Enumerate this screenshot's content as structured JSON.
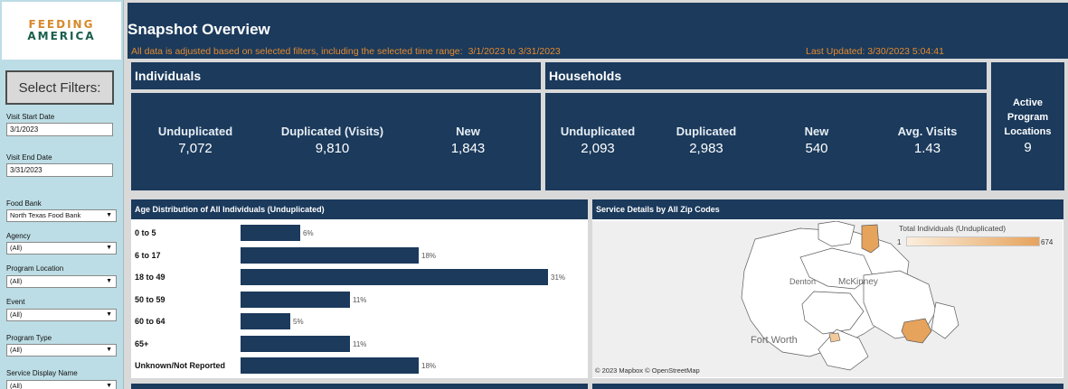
{
  "logo": {
    "line1": "FEEDING",
    "line2": "AMERICA"
  },
  "sidebar": {
    "select_filters": "Select Filters:",
    "visit_start_label": "Visit Start Date",
    "visit_start_value": "3/1/2023",
    "visit_end_label": "Visit End Date",
    "visit_end_value": "3/31/2023",
    "food_bank_label": "Food Bank",
    "food_bank_value": "North Texas Food Bank",
    "agency_label": "Agency",
    "agency_value": "(All)",
    "program_location_label": "Program Location",
    "program_location_value": "(All)",
    "event_label": "Event",
    "event_value": "(All)",
    "program_type_label": "Program Type",
    "program_type_value": "(All)",
    "service_display_label": "Service Display Name",
    "service_display_value": "(All)"
  },
  "header": {
    "title": "Snapshot Overview",
    "filter_note": "All data is adjusted based on selected filters, including the selected time range:",
    "date_range": "3/1/2023 to 3/31/2023",
    "last_updated": "Last Updated: 3/30/2023 5:04:41"
  },
  "individuals": {
    "title": "Individuals",
    "kpis": [
      {
        "label": "Unduplicated",
        "value": "7,072"
      },
      {
        "label": "Duplicated (Visits)",
        "value": "9,810"
      },
      {
        "label": "New",
        "value": "1,843"
      }
    ]
  },
  "households": {
    "title": "Households",
    "kpis": [
      {
        "label": "Unduplicated",
        "value": "2,093"
      },
      {
        "label": "Duplicated",
        "value": "2,983"
      },
      {
        "label": "New",
        "value": "540"
      },
      {
        "label": "Avg. Visits",
        "value": "1.43"
      }
    ]
  },
  "active_locations": {
    "label_line1": "Active",
    "label_line2": "Program",
    "label_line3": "Locations",
    "value": "9"
  },
  "age_chart": {
    "title": "Age Distribution of All Individuals (Unduplicated)",
    "bar_color": "#1b3a5c"
  },
  "chart_data": {
    "type": "bar",
    "orientation": "horizontal",
    "categories": [
      "0 to 5",
      "6 to 17",
      "18 to 49",
      "50 to 59",
      "60 to 64",
      "65+",
      "Unknown/Not Reported"
    ],
    "values": [
      6,
      18,
      31,
      11,
      5,
      11,
      18
    ],
    "value_labels": [
      "6%",
      "18%",
      "31%",
      "11%",
      "5%",
      "11%",
      "18%"
    ],
    "title": "Age Distribution of All Individuals (Unduplicated)",
    "xlim": [
      0,
      31
    ]
  },
  "map": {
    "title": "Service Details by All Zip Codes",
    "legend_title": "Total Individuals (Unduplicated)",
    "legend_min": "1",
    "legend_max": "674",
    "attribution": "© 2023 Mapbox  © OpenStreetMap",
    "city1": "Fort Worth",
    "city2": "McKinney",
    "city3": "Denton",
    "colors": {
      "low": "#fbeedd",
      "high": "#e6a35c"
    }
  },
  "colors": {
    "navy": "#1b3a5c",
    "orange": "#e48a2e",
    "sidebar": "#bcdde5"
  }
}
